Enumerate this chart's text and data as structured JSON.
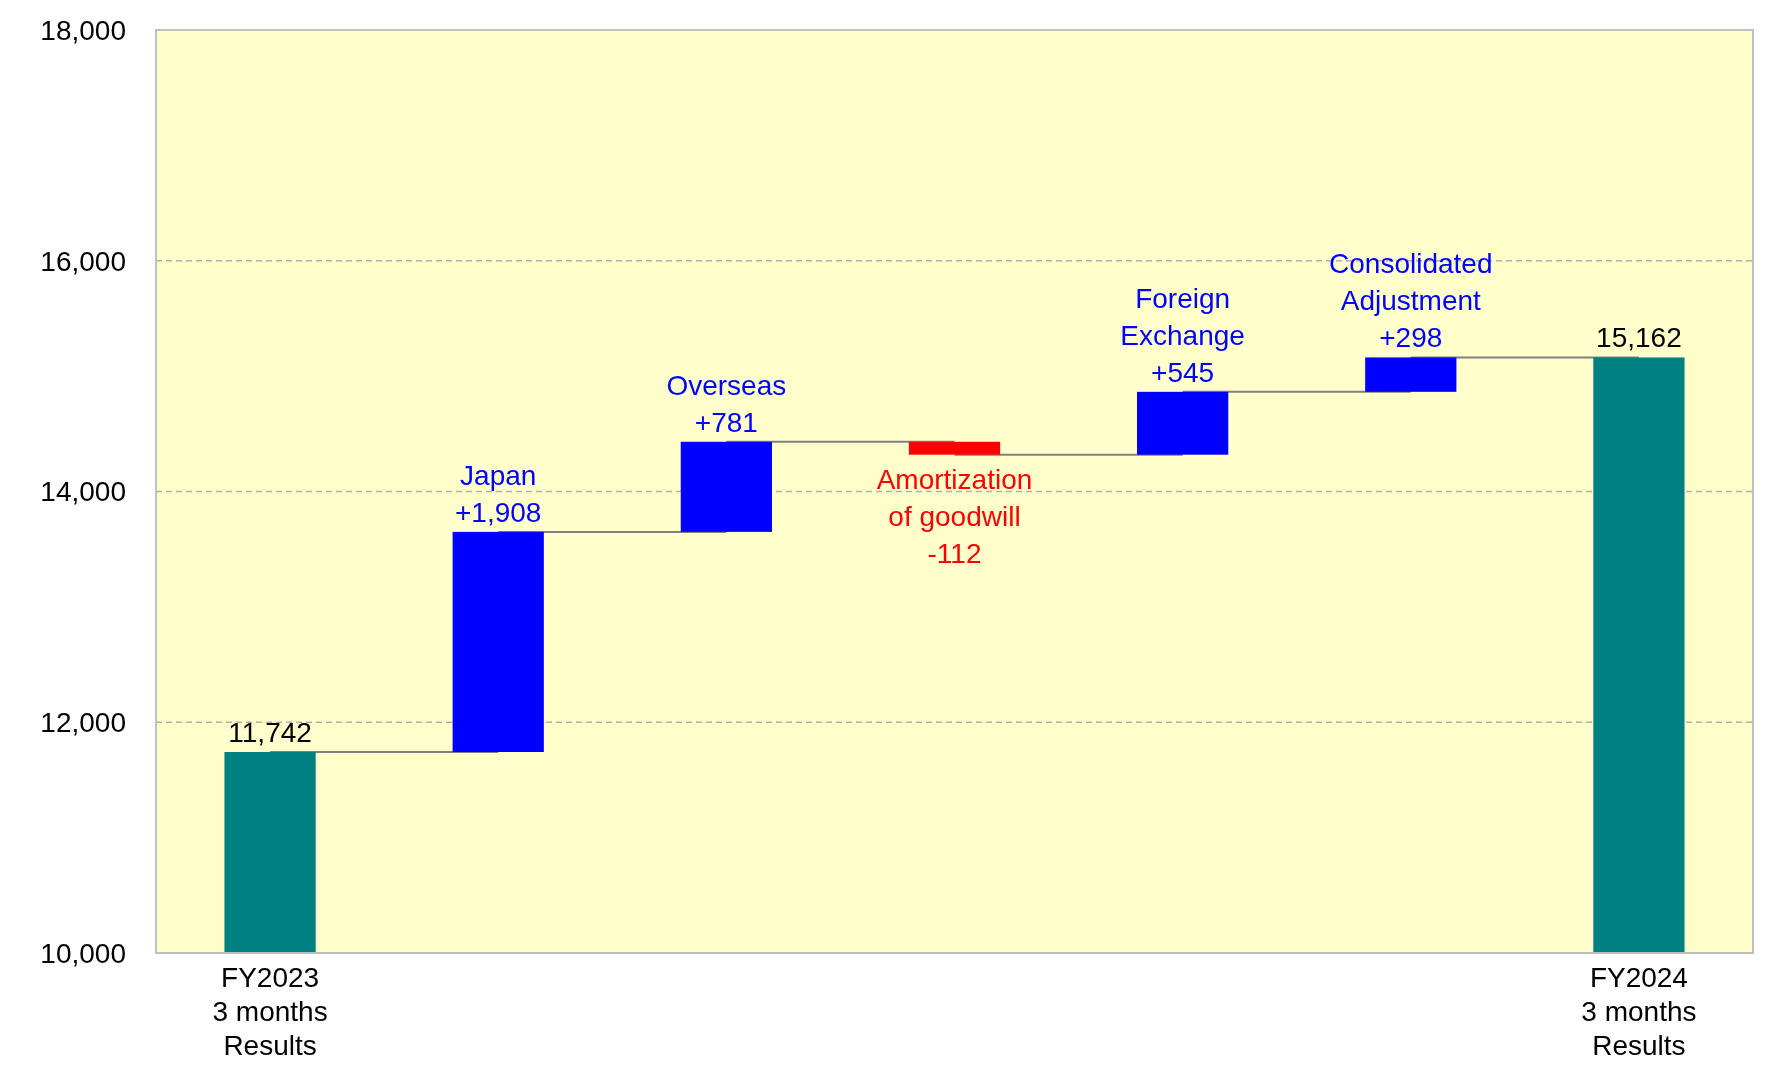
{
  "chart_data": {
    "type": "bar",
    "categories": [
      "FY2023\n3 months\nResults",
      null,
      null,
      null,
      null,
      null,
      "FY2024\n3 months\nResults"
    ],
    "values": [
      11742,
      1908,
      781,
      -112,
      545,
      298,
      15162
    ],
    "base": [
      null,
      11742,
      13650,
      14431,
      14319,
      14864,
      null
    ],
    "colors": [
      "#008080",
      "#0000ff",
      "#0000ff",
      "#ff0000",
      "#0000ff",
      "#0000ff",
      "#008080"
    ],
    "value_labels": [
      "11,742",
      "Japan\n+1,908",
      "Overseas\n+781",
      "Amortization\nof goodwill\n-112",
      "Foreign\nExchange\n+545",
      "Consolidated\nAdjustment\n+298",
      "15,162"
    ],
    "ylim": [
      10000,
      18000
    ],
    "yticks": [
      {
        "value": 10000,
        "label": "10,000"
      },
      {
        "value": 12000,
        "label": "12,000"
      },
      {
        "value": 14000,
        "label": "14,000"
      },
      {
        "value": 16000,
        "label": "16,000"
      },
      {
        "value": 18000,
        "label": "18,000"
      }
    ],
    "grid": "y"
  }
}
